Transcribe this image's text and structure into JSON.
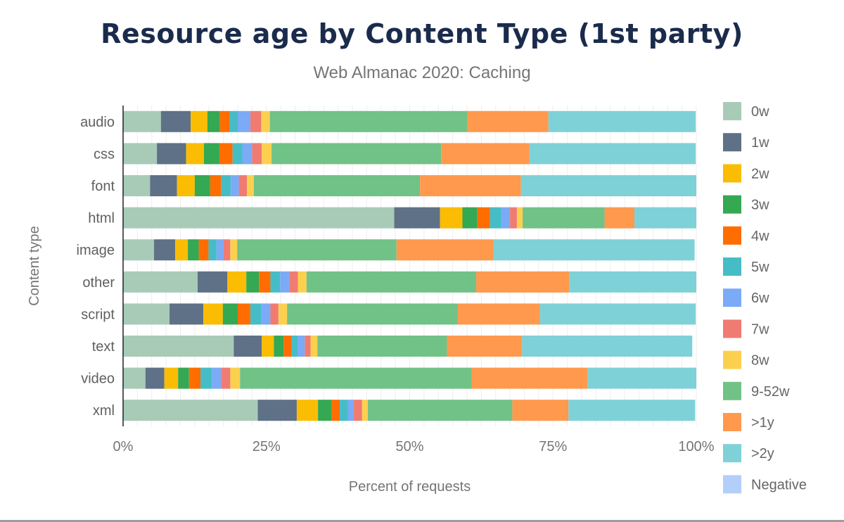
{
  "chart_data": {
    "type": "bar",
    "orientation": "horizontal",
    "stacked": true,
    "title": "Resource age by Content Type (1st party)",
    "subtitle": "Web Almanac 2020: Caching",
    "xlabel": "Percent of requests",
    "ylabel": "Content type",
    "xlim": [
      0,
      100
    ],
    "x_ticks": [
      "0%",
      "25%",
      "50%",
      "75%",
      "100%"
    ],
    "grid": true,
    "legend_position": "right",
    "categories": [
      "audio",
      "css",
      "font",
      "html",
      "image",
      "other",
      "script",
      "text",
      "video",
      "xml"
    ],
    "series": [
      {
        "name": "0w",
        "color": "#a8cbb7",
        "values": [
          6.6,
          5.9,
          4.7,
          47.3,
          5.4,
          13.0,
          8.1,
          19.3,
          3.9,
          23.5
        ]
      },
      {
        "name": "1w",
        "color": "#5f7187",
        "values": [
          5.2,
          5.1,
          4.7,
          8.0,
          3.7,
          5.2,
          5.9,
          4.9,
          3.3,
          6.8
        ]
      },
      {
        "name": "2w",
        "color": "#fbbc04",
        "values": [
          2.9,
          3.1,
          3.1,
          3.9,
          2.2,
          3.3,
          3.4,
          2.1,
          2.4,
          3.7
        ]
      },
      {
        "name": "3w",
        "color": "#34a853",
        "values": [
          2.2,
          2.7,
          2.7,
          2.6,
          1.9,
          2.2,
          2.6,
          1.7,
          1.9,
          2.4
        ]
      },
      {
        "name": "4w",
        "color": "#ff6d00",
        "values": [
          1.7,
          2.3,
          1.9,
          2.2,
          1.7,
          2.0,
          2.2,
          1.4,
          2.0,
          1.4
        ]
      },
      {
        "name": "5w",
        "color": "#46bdc6",
        "values": [
          1.4,
          1.7,
          1.7,
          2.0,
          1.4,
          1.7,
          1.9,
          1.1,
          2.0,
          1.4
        ]
      },
      {
        "name": "6w",
        "color": "#7baaf7",
        "values": [
          2.2,
          1.7,
          1.4,
          1.5,
          1.2,
          1.6,
          1.6,
          1.2,
          1.6,
          1.0
        ]
      },
      {
        "name": "7w",
        "color": "#f07b72",
        "values": [
          1.9,
          1.7,
          1.4,
          1.2,
          1.2,
          1.5,
          1.4,
          1.0,
          1.6,
          1.5
        ]
      },
      {
        "name": "8w",
        "color": "#fcd04f",
        "values": [
          1.5,
          1.7,
          1.2,
          1.0,
          1.2,
          1.5,
          1.5,
          1.2,
          1.7,
          1.0
        ]
      },
      {
        "name": "9-52w",
        "color": "#71c287",
        "values": [
          34.4,
          29.6,
          29.0,
          14.3,
          27.8,
          29.6,
          29.8,
          22.6,
          40.4,
          25.2
        ]
      },
      {
        "name": ">1y",
        "color": "#ff994d",
        "values": [
          14.2,
          15.4,
          17.6,
          5.2,
          16.9,
          16.2,
          14.3,
          13.1,
          20.2,
          9.8
        ]
      },
      {
        "name": ">2y",
        "color": "#7ed1d7",
        "values": [
          25.7,
          29.0,
          30.7,
          10.9,
          35.1,
          22.2,
          27.2,
          29.7,
          19.0,
          22.1
        ]
      },
      {
        "name": "Negative",
        "color": "#b3cefb",
        "values": [
          0,
          0,
          0,
          0,
          0,
          0,
          0,
          0,
          0,
          0
        ]
      }
    ]
  }
}
